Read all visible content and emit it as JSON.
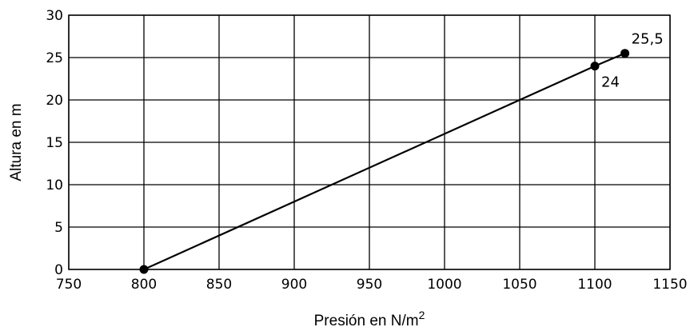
{
  "chart_data": {
    "type": "line",
    "xlabel": "Presión en N/m",
    "xlabel_superscript": "2",
    "ylabel": "Altura en m",
    "xlim": [
      750,
      1150
    ],
    "ylim": [
      0,
      30
    ],
    "x_ticks": [
      "750",
      "800",
      "850",
      "900",
      "950",
      "1000",
      "1050",
      "1100",
      "1150"
    ],
    "y_ticks": [
      "0",
      "5",
      "10",
      "15",
      "20",
      "25",
      "30"
    ],
    "grid": true,
    "series": [
      {
        "x": [
          800,
          1100,
          1120
        ],
        "y": [
          0,
          24,
          25.5
        ]
      }
    ],
    "annotations": [
      {
        "x": 1100,
        "y": 24,
        "text": "24",
        "position": "below-right"
      },
      {
        "x": 1120,
        "y": 25.5,
        "text": "25,5",
        "position": "above-right"
      }
    ],
    "colors": {
      "line": "#000000",
      "grid": "#000000",
      "marker": "#000000"
    }
  }
}
